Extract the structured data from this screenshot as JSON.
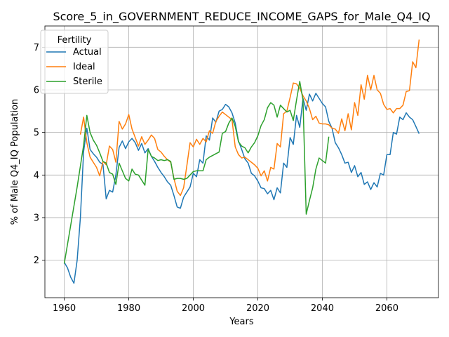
{
  "chart_data": {
    "type": "line",
    "title": "Score_5_in_GOVERNMENT_REDUCE_INCOME_GAPS_for_Male_Q4_IQ",
    "xlabel": "Years",
    "ylabel": "% of Male Q4_IQ Population",
    "xlim": [
      1954,
      2076
    ],
    "ylim": [
      1.12,
      7.5
    ],
    "xticks": [
      1960,
      1980,
      2000,
      2020,
      2040,
      2060
    ],
    "yticks": [
      2,
      3,
      4,
      5,
      6,
      7
    ],
    "grid": true,
    "legend": {
      "title": "Fertility",
      "placement": "top-left"
    },
    "series": [
      {
        "name": "Actual",
        "color": "#1f77b4",
        "points": [
          [
            1960,
            1.95
          ],
          [
            1961,
            1.82
          ],
          [
            1962,
            1.6
          ],
          [
            1963,
            1.46
          ],
          [
            1964,
            2.0
          ],
          [
            1965,
            3.0
          ],
          [
            1966,
            4.55
          ],
          [
            1967,
            5.1
          ],
          [
            1968,
            4.6
          ],
          [
            1969,
            4.5
          ],
          [
            1970,
            4.42
          ],
          [
            1971,
            4.3
          ],
          [
            1972,
            4.25
          ],
          [
            1973,
            3.44
          ],
          [
            1974,
            3.64
          ],
          [
            1975,
            3.6
          ],
          [
            1976,
            4.0
          ],
          [
            1977,
            4.65
          ],
          [
            1978,
            4.8
          ],
          [
            1979,
            4.62
          ],
          [
            1980,
            4.78
          ],
          [
            1981,
            4.86
          ],
          [
            1982,
            4.76
          ],
          [
            1983,
            4.58
          ],
          [
            1984,
            4.74
          ],
          [
            1985,
            4.52
          ],
          [
            1986,
            4.62
          ],
          [
            1987,
            4.44
          ],
          [
            1988,
            4.32
          ],
          [
            1989,
            4.18
          ],
          [
            1990,
            4.06
          ],
          [
            1991,
            3.96
          ],
          [
            1992,
            3.84
          ],
          [
            1993,
            3.76
          ],
          [
            1994,
            3.52
          ],
          [
            1995,
            3.25
          ],
          [
            1996,
            3.22
          ],
          [
            1997,
            3.48
          ],
          [
            1998,
            3.6
          ],
          [
            1999,
            3.72
          ],
          [
            2000,
            4.04
          ],
          [
            2001,
            3.96
          ],
          [
            2002,
            4.36
          ],
          [
            2003,
            4.28
          ],
          [
            2004,
            4.92
          ],
          [
            2005,
            4.82
          ],
          [
            2006,
            5.34
          ],
          [
            2007,
            5.24
          ],
          [
            2008,
            5.5
          ],
          [
            2009,
            5.54
          ],
          [
            2010,
            5.66
          ],
          [
            2011,
            5.6
          ],
          [
            2012,
            5.46
          ],
          [
            2013,
            5.22
          ],
          [
            2014,
            4.8
          ],
          [
            2015,
            4.6
          ],
          [
            2016,
            4.38
          ],
          [
            2017,
            4.28
          ],
          [
            2018,
            4.04
          ],
          [
            2019,
            3.98
          ],
          [
            2020,
            3.86
          ],
          [
            2021,
            3.7
          ],
          [
            2022,
            3.68
          ],
          [
            2023,
            3.56
          ],
          [
            2024,
            3.64
          ],
          [
            2025,
            3.42
          ],
          [
            2026,
            3.7
          ],
          [
            2027,
            3.58
          ],
          [
            2028,
            4.28
          ],
          [
            2029,
            4.18
          ],
          [
            2030,
            4.88
          ],
          [
            2031,
            4.72
          ],
          [
            2032,
            5.4
          ],
          [
            2033,
            5.12
          ],
          [
            2034,
            5.8
          ],
          [
            2035,
            5.52
          ],
          [
            2036,
            5.9
          ],
          [
            2037,
            5.74
          ],
          [
            2038,
            5.92
          ],
          [
            2039,
            5.8
          ],
          [
            2040,
            5.68
          ],
          [
            2041,
            5.6
          ],
          [
            2042,
            5.26
          ],
          [
            2043,
            5.1
          ],
          [
            2044,
            4.76
          ],
          [
            2045,
            4.64
          ],
          [
            2046,
            4.48
          ],
          [
            2047,
            4.28
          ],
          [
            2048,
            4.3
          ],
          [
            2049,
            4.06
          ],
          [
            2050,
            4.22
          ],
          [
            2051,
            3.96
          ],
          [
            2052,
            4.06
          ],
          [
            2053,
            3.78
          ],
          [
            2054,
            3.84
          ],
          [
            2055,
            3.66
          ],
          [
            2056,
            3.82
          ],
          [
            2057,
            3.72
          ],
          [
            2058,
            4.04
          ],
          [
            2059,
            4.0
          ],
          [
            2060,
            4.48
          ],
          [
            2061,
            4.48
          ],
          [
            2062,
            5.0
          ],
          [
            2063,
            4.96
          ],
          [
            2064,
            5.36
          ],
          [
            2065,
            5.3
          ],
          [
            2066,
            5.46
          ],
          [
            2067,
            5.36
          ],
          [
            2068,
            5.3
          ],
          [
            2069,
            5.14
          ],
          [
            2070,
            4.97
          ]
        ]
      },
      {
        "name": "Ideal",
        "color": "#ff7f0e",
        "points": [
          [
            1965,
            4.95
          ],
          [
            1966,
            5.36
          ],
          [
            1967,
            4.76
          ],
          [
            1968,
            4.42
          ],
          [
            1969,
            4.3
          ],
          [
            1970,
            4.18
          ],
          [
            1971,
            3.98
          ],
          [
            1972,
            4.32
          ],
          [
            1973,
            4.24
          ],
          [
            1974,
            4.68
          ],
          [
            1975,
            4.6
          ],
          [
            1976,
            4.3
          ],
          [
            1977,
            5.26
          ],
          [
            1978,
            5.08
          ],
          [
            1979,
            5.2
          ],
          [
            1980,
            5.42
          ],
          [
            1981,
            5.08
          ],
          [
            1982,
            4.88
          ],
          [
            1983,
            4.68
          ],
          [
            1984,
            4.9
          ],
          [
            1985,
            4.72
          ],
          [
            1986,
            4.82
          ],
          [
            1987,
            4.94
          ],
          [
            1988,
            4.86
          ],
          [
            1989,
            4.6
          ],
          [
            1990,
            4.54
          ],
          [
            1991,
            4.44
          ],
          [
            1992,
            4.36
          ],
          [
            1993,
            4.3
          ],
          [
            1994,
            3.92
          ],
          [
            1995,
            3.62
          ],
          [
            1996,
            3.52
          ],
          [
            1997,
            3.7
          ],
          [
            1998,
            4.22
          ],
          [
            1999,
            4.76
          ],
          [
            2000,
            4.66
          ],
          [
            2001,
            4.84
          ],
          [
            2002,
            4.72
          ],
          [
            2003,
            4.86
          ],
          [
            2004,
            4.78
          ],
          [
            2005,
            5.04
          ],
          [
            2006,
            4.98
          ],
          [
            2007,
            5.26
          ],
          [
            2008,
            5.38
          ],
          [
            2009,
            5.48
          ],
          [
            2010,
            5.42
          ],
          [
            2011,
            5.36
          ],
          [
            2012,
            5.3
          ],
          [
            2013,
            4.66
          ],
          [
            2014,
            4.48
          ],
          [
            2015,
            4.4
          ],
          [
            2016,
            4.42
          ],
          [
            2017,
            4.36
          ],
          [
            2018,
            4.3
          ],
          [
            2019,
            4.24
          ],
          [
            2020,
            4.16
          ],
          [
            2021,
            3.98
          ],
          [
            2022,
            4.1
          ],
          [
            2023,
            3.86
          ],
          [
            2024,
            4.18
          ],
          [
            2025,
            4.14
          ],
          [
            2026,
            4.74
          ],
          [
            2027,
            4.66
          ],
          [
            2028,
            5.44
          ],
          [
            2029,
            5.5
          ],
          [
            2030,
            5.82
          ],
          [
            2031,
            6.16
          ],
          [
            2032,
            6.14
          ],
          [
            2033,
            6.04
          ],
          [
            2034,
            5.86
          ],
          [
            2035,
            5.74
          ],
          [
            2036,
            5.56
          ],
          [
            2037,
            5.3
          ],
          [
            2038,
            5.38
          ],
          [
            2039,
            5.22
          ],
          [
            2040,
            5.2
          ],
          [
            2041,
            5.2
          ],
          [
            2042,
            5.18
          ],
          [
            2043,
            5.1
          ],
          [
            2044,
            5.08
          ],
          [
            2045,
            4.98
          ],
          [
            2046,
            5.32
          ],
          [
            2047,
            5.04
          ],
          [
            2048,
            5.44
          ],
          [
            2049,
            5.06
          ],
          [
            2050,
            5.7
          ],
          [
            2051,
            5.4
          ],
          [
            2052,
            6.12
          ],
          [
            2053,
            5.78
          ],
          [
            2054,
            6.34
          ],
          [
            2055,
            6.0
          ],
          [
            2056,
            6.34
          ],
          [
            2057,
            6.0
          ],
          [
            2058,
            5.92
          ],
          [
            2059,
            5.66
          ],
          [
            2060,
            5.54
          ],
          [
            2061,
            5.56
          ],
          [
            2062,
            5.46
          ],
          [
            2063,
            5.56
          ],
          [
            2064,
            5.56
          ],
          [
            2065,
            5.64
          ],
          [
            2066,
            5.96
          ],
          [
            2067,
            5.98
          ],
          [
            2068,
            6.66
          ],
          [
            2069,
            6.52
          ],
          [
            2070,
            7.18
          ]
        ]
      },
      {
        "name": "Sterile",
        "color": "#2ca02c",
        "points": [
          [
            1960,
            1.92
          ],
          [
            1962,
            2.82
          ],
          [
            1964,
            3.72
          ],
          [
            1966,
            4.7
          ],
          [
            1967,
            5.4
          ],
          [
            1968,
            5.0
          ],
          [
            1969,
            4.82
          ],
          [
            1970,
            4.7
          ],
          [
            1971,
            4.52
          ],
          [
            1972,
            4.32
          ],
          [
            1973,
            4.28
          ],
          [
            1974,
            4.06
          ],
          [
            1975,
            4.02
          ],
          [
            1976,
            3.78
          ],
          [
            1977,
            4.28
          ],
          [
            1978,
            4.1
          ],
          [
            1979,
            3.92
          ],
          [
            1980,
            3.86
          ],
          [
            1981,
            4.14
          ],
          [
            1982,
            4.02
          ],
          [
            1983,
            4.0
          ],
          [
            1984,
            3.88
          ],
          [
            1985,
            3.76
          ],
          [
            1986,
            4.6
          ],
          [
            1987,
            4.44
          ],
          [
            1988,
            4.4
          ],
          [
            1989,
            4.34
          ],
          [
            1990,
            4.36
          ],
          [
            1991,
            4.34
          ],
          [
            1992,
            4.36
          ],
          [
            1993,
            4.32
          ],
          [
            1994,
            3.9
          ],
          [
            1995,
            3.92
          ],
          [
            1996,
            3.92
          ],
          [
            1997,
            3.9
          ],
          [
            1998,
            3.92
          ],
          [
            1999,
            4.0
          ],
          [
            2000,
            4.08
          ],
          [
            2001,
            4.1
          ],
          [
            2002,
            4.1
          ],
          [
            2003,
            4.1
          ],
          [
            2004,
            4.36
          ],
          [
            2005,
            4.42
          ],
          [
            2006,
            4.46
          ],
          [
            2007,
            4.5
          ],
          [
            2008,
            4.54
          ],
          [
            2009,
            4.98
          ],
          [
            2010,
            5.02
          ],
          [
            2011,
            5.22
          ],
          [
            2012,
            5.34
          ],
          [
            2013,
            5.14
          ],
          [
            2014,
            4.78
          ],
          [
            2015,
            4.68
          ],
          [
            2016,
            4.64
          ],
          [
            2017,
            4.52
          ],
          [
            2018,
            4.66
          ],
          [
            2019,
            4.76
          ],
          [
            2020,
            4.92
          ],
          [
            2021,
            5.16
          ],
          [
            2022,
            5.3
          ],
          [
            2023,
            5.58
          ],
          [
            2024,
            5.7
          ],
          [
            2025,
            5.64
          ],
          [
            2026,
            5.36
          ],
          [
            2027,
            5.64
          ],
          [
            2028,
            5.56
          ],
          [
            2029,
            5.48
          ],
          [
            2030,
            5.52
          ],
          [
            2031,
            5.28
          ],
          [
            2032,
            5.76
          ],
          [
            2033,
            6.2
          ],
          [
            2034,
            5.76
          ],
          [
            2035,
            3.08
          ],
          [
            2036,
            3.4
          ],
          [
            2037,
            3.7
          ],
          [
            2038,
            4.14
          ],
          [
            2039,
            4.4
          ],
          [
            2040,
            4.34
          ],
          [
            2041,
            4.28
          ],
          [
            2042,
            4.9
          ]
        ]
      }
    ]
  }
}
